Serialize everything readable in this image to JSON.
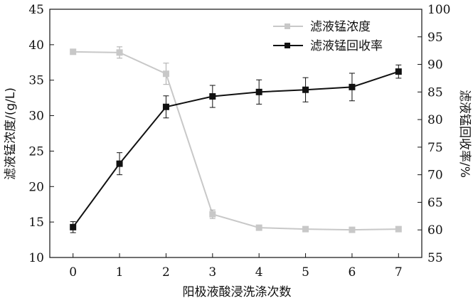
{
  "chart_data": {
    "type": "line",
    "x": [
      0,
      1,
      2,
      3,
      4,
      5,
      6,
      7
    ],
    "xlabel": "阳极液酸浸洗涤次数",
    "xlim": [
      -0.5,
      7.5
    ],
    "x_ticks": [
      "0",
      "1",
      "2",
      "3",
      "4",
      "5",
      "6",
      "7"
    ],
    "ylabel_left": "滤液锰浓度/(g/L)",
    "ylim_left": [
      10,
      45
    ],
    "y_ticks_left": [
      "10",
      "15",
      "20",
      "25",
      "30",
      "35",
      "40",
      "45"
    ],
    "ylabel_right": "滤液锰回收率/%",
    "ylim_right": [
      55,
      100
    ],
    "y_ticks_right": [
      "55",
      "60",
      "65",
      "70",
      "75",
      "80",
      "85",
      "90",
      "95",
      "100"
    ],
    "grid": false,
    "legend_position": "top-right",
    "series": [
      {
        "name": "滤液锰浓度",
        "axis": "left",
        "color": "#c8c8c8",
        "marker": "square",
        "values": [
          39.0,
          38.9,
          35.9,
          16.1,
          14.2,
          14.0,
          13.9,
          14.0
        ],
        "error": [
          0.0,
          0.8,
          1.5,
          0.6,
          0.0,
          0.0,
          0.0,
          0.0
        ]
      },
      {
        "name": "滤液锰回收率",
        "axis": "right",
        "color": "#111111",
        "marker": "square",
        "values": [
          60.5,
          72.0,
          82.3,
          84.2,
          85.0,
          85.4,
          85.9,
          88.7
        ],
        "error": [
          1.0,
          2.0,
          2.0,
          2.0,
          2.2,
          2.2,
          2.5,
          1.2
        ]
      }
    ]
  }
}
